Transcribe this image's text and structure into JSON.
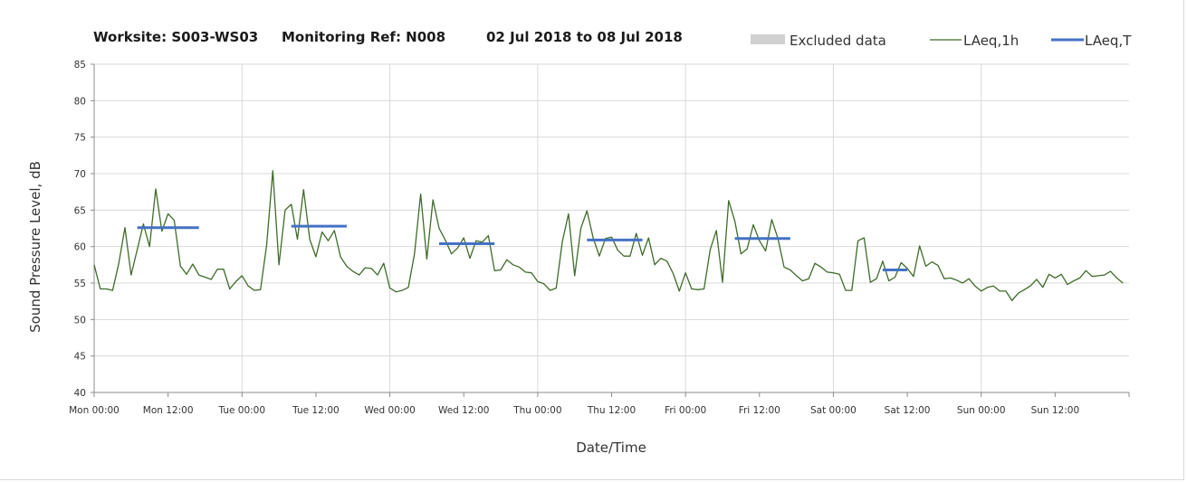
{
  "chart_data": {
    "type": "line",
    "title_parts": [
      "Worksite: S003-WS03",
      "Monitoring Ref: N008",
      "02 Jul 2018 to 08 Jul 2018"
    ],
    "xlabel": "Date/Time",
    "ylabel": "Sound Pressure Level, dB",
    "ylim": [
      40,
      85
    ],
    "y_ticks": [
      40,
      45,
      50,
      55,
      60,
      65,
      70,
      75,
      80,
      85
    ],
    "x_range_hours": [
      0,
      168
    ],
    "x_ticks": [
      {
        "hour": 0,
        "label": "Mon 00:00"
      },
      {
        "hour": 12,
        "label": "Mon 12:00"
      },
      {
        "hour": 24,
        "label": "Tue 00:00"
      },
      {
        "hour": 36,
        "label": "Tue 12:00"
      },
      {
        "hour": 48,
        "label": "Wed 00:00"
      },
      {
        "hour": 60,
        "label": "Wed 12:00"
      },
      {
        "hour": 72,
        "label": "Thu 00:00"
      },
      {
        "hour": 84,
        "label": "Thu 12:00"
      },
      {
        "hour": 96,
        "label": "Fri 00:00"
      },
      {
        "hour": 108,
        "label": "Fri 12:00"
      },
      {
        "hour": 120,
        "label": "Sat 00:00"
      },
      {
        "hour": 132,
        "label": "Sat 12:00"
      },
      {
        "hour": 144,
        "label": "Sun 00:00"
      },
      {
        "hour": 156,
        "label": "Sun 12:00"
      }
    ],
    "grid": true,
    "legend": {
      "position": "top-right",
      "items": [
        {
          "name": "Excluded data",
          "style": "patch",
          "color": "#d0d0d0"
        },
        {
          "name": "LAeq,1h",
          "style": "line",
          "color": "#3f6b2a"
        },
        {
          "name": "LAeq,T",
          "style": "line",
          "color": "#4472c4"
        }
      ]
    },
    "series": [
      {
        "name": "LAeq,1h",
        "color": "#3f6b2a",
        "x_start_hour": 0,
        "x_step_hour": 1,
        "values": [
          57.5,
          54.2,
          54.2,
          54.0,
          57.7,
          62.6,
          56.1,
          59.6,
          63.1,
          60.0,
          67.9,
          62.1,
          64.5,
          63.6,
          57.3,
          56.2,
          57.6,
          56.1,
          55.8,
          55.5,
          56.9,
          56.9,
          54.2,
          55.2,
          56.0,
          54.6,
          54.0,
          54.1,
          60.2,
          70.4,
          57.5,
          65.0,
          65.8,
          61.0,
          67.8,
          61.0,
          58.6,
          62.0,
          60.8,
          62.2,
          58.6,
          57.3,
          56.6,
          56.1,
          57.1,
          57.0,
          56.1,
          57.7,
          54.3,
          53.8,
          54.0,
          54.4,
          59.0,
          67.2,
          58.3,
          66.4,
          62.5,
          60.9,
          59.0,
          59.8,
          61.2,
          58.4,
          60.8,
          60.6,
          61.5,
          56.7,
          56.8,
          58.2,
          57.5,
          57.2,
          56.5,
          56.4,
          55.2,
          54.9,
          54.0,
          54.3,
          60.7,
          64.5,
          56.0,
          62.5,
          64.9,
          61.2,
          58.7,
          61.1,
          61.3,
          59.5,
          58.7,
          58.7,
          61.8,
          58.8,
          61.2,
          57.5,
          58.4,
          58.0,
          56.3,
          53.9,
          56.4,
          54.2,
          54.1,
          54.2,
          59.6,
          62.2,
          55.1,
          66.3,
          63.5,
          59.0,
          59.7,
          63.0,
          60.8,
          59.4,
          63.7,
          61.1,
          57.2,
          56.8,
          56.0,
          55.3,
          55.6,
          57.7,
          57.2,
          56.5,
          56.4,
          56.2,
          54.0,
          54.0,
          60.8,
          61.2,
          55.1,
          55.6,
          58.0,
          55.3,
          55.8,
          57.8,
          57.0,
          55.9,
          60.1,
          57.3,
          57.9,
          57.4,
          55.6,
          55.7,
          55.4,
          55.0,
          55.6,
          54.6,
          53.9,
          54.4,
          54.6,
          53.9,
          53.9,
          52.6,
          53.6,
          54.1,
          54.6,
          55.5,
          54.4,
          56.2,
          55.7,
          56.2,
          54.8,
          55.3,
          55.7,
          56.7,
          55.9,
          56.0,
          56.1,
          56.6,
          55.7,
          55.0
        ]
      },
      {
        "name": "LAeq,T",
        "color": "#4472c4",
        "segments": [
          {
            "start_hour": 7,
            "end_hour": 17,
            "value": 62.6
          },
          {
            "start_hour": 32,
            "end_hour": 41,
            "value": 62.8
          },
          {
            "start_hour": 56,
            "end_hour": 65,
            "value": 60.4
          },
          {
            "start_hour": 80,
            "end_hour": 89,
            "value": 60.9
          },
          {
            "start_hour": 104,
            "end_hour": 113,
            "value": 61.1
          },
          {
            "start_hour": 128,
            "end_hour": 132,
            "value": 56.8
          }
        ]
      }
    ]
  }
}
